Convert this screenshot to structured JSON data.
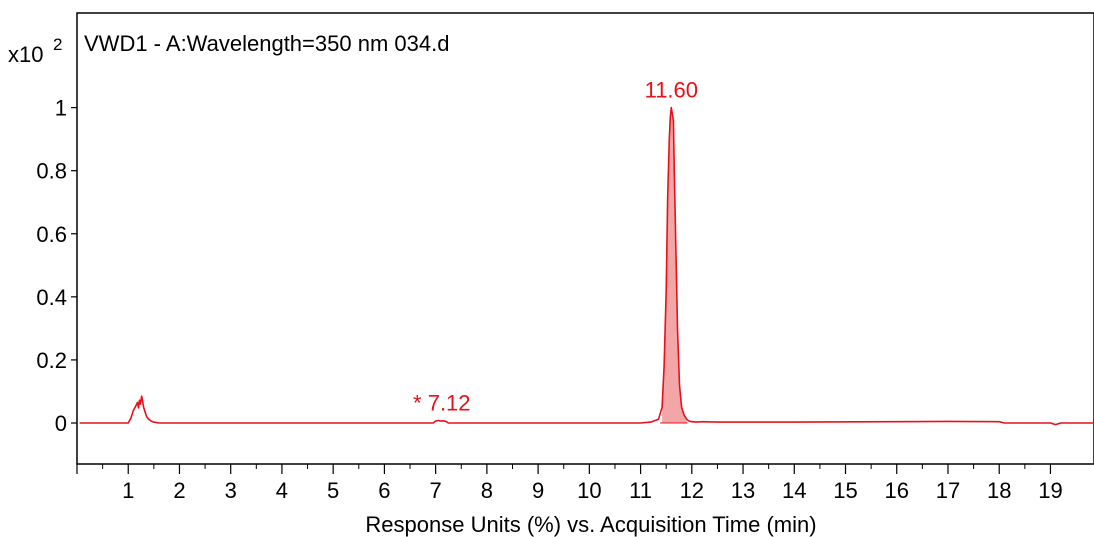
{
  "colors": {
    "trace": "#e8101a",
    "peak_fill": "#f2a6a8",
    "axis": "#000000",
    "background": "#ffffff"
  },
  "chart_data": {
    "type": "line",
    "title": "VWD1 - A:Wavelength=350 nm 034.d",
    "y_multiplier": "x10",
    "y_multiplier_exponent": "2",
    "xlabel": "Response Units (%) vs. Acquisition Time (min)",
    "ylabel": "",
    "xlim": [
      0.0,
      19.85
    ],
    "ylim": [
      -0.13,
      1.3
    ],
    "x_ticks": [
      1,
      2,
      3,
      4,
      5,
      6,
      7,
      8,
      9,
      10,
      11,
      12,
      13,
      14,
      15,
      16,
      17,
      18,
      19
    ],
    "y_ticks": [
      {
        "value": 0,
        "label": "0"
      },
      {
        "value": 0.2,
        "label": "0.2"
      },
      {
        "value": 0.4,
        "label": "0.4"
      },
      {
        "value": 0.6,
        "label": "0.6"
      },
      {
        "value": 0.8,
        "label": "0.8"
      },
      {
        "value": 1.0,
        "label": "1"
      }
    ],
    "grid": false,
    "series": [
      {
        "x": [
          0.05,
          1.0,
          1.05,
          1.1,
          1.15,
          1.18,
          1.2,
          1.22,
          1.24,
          1.26,
          1.28,
          1.3,
          1.33,
          1.36,
          1.4,
          1.45,
          1.5,
          1.6,
          1.7,
          1.8,
          2.0,
          6.95,
          7.0,
          7.05,
          7.1,
          7.15,
          7.2,
          7.25,
          11.0,
          11.2,
          11.35,
          11.42,
          11.46,
          11.5,
          11.53,
          11.56,
          11.58,
          11.6,
          11.62,
          11.64,
          11.66,
          11.69,
          11.72,
          11.76,
          11.8,
          11.85,
          11.9,
          11.95,
          12.0,
          12.1,
          12.2,
          12.5,
          14.0,
          16.0,
          17.0,
          18.0,
          18.1,
          18.3,
          19.0,
          19.1,
          19.2,
          19.85
        ],
        "y": [
          0.0,
          0.0,
          0.015,
          0.04,
          0.055,
          0.065,
          0.048,
          0.072,
          0.06,
          0.085,
          0.07,
          0.05,
          0.035,
          0.02,
          0.012,
          0.006,
          0.003,
          0.0,
          0.0,
          0.0,
          0.0,
          0.0,
          0.006,
          0.008,
          0.006,
          0.007,
          0.005,
          0.0,
          0.0,
          0.003,
          0.012,
          0.05,
          0.18,
          0.42,
          0.72,
          0.9,
          0.97,
          1.0,
          0.98,
          0.96,
          0.78,
          0.55,
          0.3,
          0.12,
          0.05,
          0.025,
          0.012,
          0.006,
          0.004,
          0.003,
          0.004,
          0.003,
          0.003,
          0.004,
          0.005,
          0.004,
          0.0,
          0.0,
          0.0,
          -0.005,
          0.0,
          0.0
        ]
      }
    ],
    "peak_fill_range": [
      11.38,
      11.92
    ],
    "annotations": [
      {
        "text": "11.60",
        "x": 11.6,
        "y": 1.0
      },
      {
        "text": "* 7.12",
        "x": 7.12,
        "y": 0.008
      }
    ]
  }
}
